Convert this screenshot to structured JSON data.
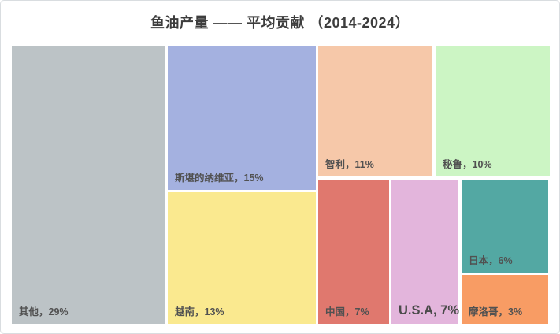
{
  "chart_data": {
    "type": "treemap",
    "title": "鱼油产量 —— 平均贡献 （2014-2024）",
    "unit": "%",
    "value_label": "平均贡献占比",
    "period": "2014-2024",
    "items": [
      {
        "name": "其他",
        "value": 29,
        "label": "其他，29%",
        "color": "#bcc3c6"
      },
      {
        "name": "斯堪的纳维亚",
        "value": 15,
        "label": "斯堪的纳维亚，15%",
        "color": "#a4b1e0"
      },
      {
        "name": "越南",
        "value": 13,
        "label": "越南，13%",
        "color": "#fae98f"
      },
      {
        "name": "智利",
        "value": 11,
        "label": "智利，11%",
        "color": "#f6c8a9"
      },
      {
        "name": "秘鲁",
        "value": 10,
        "label": "秘鲁，10%",
        "color": "#ccf5c4"
      },
      {
        "name": "中国",
        "value": 7,
        "label": "中国，7%",
        "color": "#e0786e"
      },
      {
        "name": "U.S.A",
        "value": 7,
        "label": "U.S.A, 7%",
        "color": "#e3b5dc"
      },
      {
        "name": "日本",
        "value": 6,
        "label": "日本，6%",
        "color": "#53a8a3"
      },
      {
        "name": "摩洛哥",
        "value": 3,
        "label": "摩洛哥，3%",
        "color": "#f89c64"
      }
    ]
  }
}
